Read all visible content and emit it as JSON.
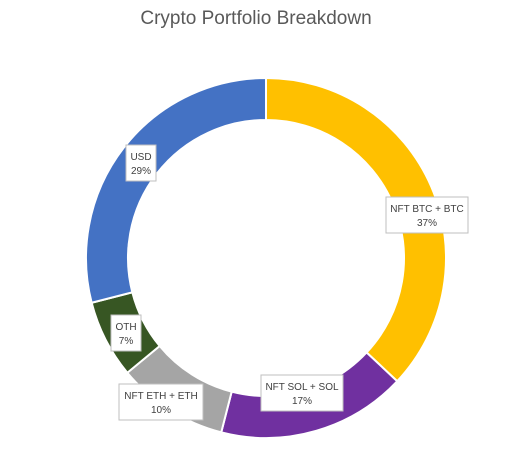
{
  "chart_data": {
    "type": "pie",
    "variant": "donut",
    "title": "Crypto Portfolio Breakdown",
    "legend": "none",
    "slices": [
      {
        "label": "NFT BTC + BTC",
        "value": 37,
        "pct_label": "37%",
        "color": "#FFC000"
      },
      {
        "label": "NFT SOL + SOL",
        "value": 17,
        "pct_label": "17%",
        "color": "#7030A0"
      },
      {
        "label": "NFT ETH + ETH",
        "value": 10,
        "pct_label": "10%",
        "color": "#A5A5A5"
      },
      {
        "label": "OTH",
        "value": 7,
        "pct_label": "7%",
        "color": "#375623"
      },
      {
        "label": "USD",
        "value": 29,
        "pct_label": "29%",
        "color": "#4472C4"
      }
    ]
  }
}
